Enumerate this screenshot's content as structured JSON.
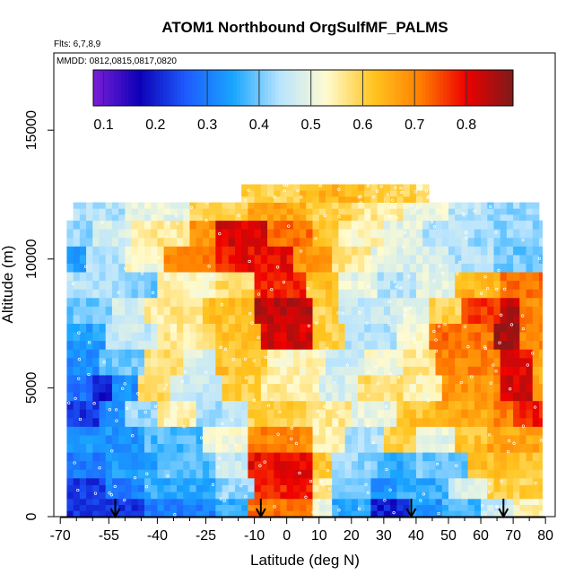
{
  "chart_data": {
    "type": "heatmap",
    "title": "ATOM1 Northbound OrgSulfMF_PALMS",
    "subtitle_flights": "Flts: 6,7,8,9",
    "subtitle_dates": "MMDD: 0812,0815,0817,0820",
    "xlabel": "Latitude (deg N)",
    "ylabel": "Altitude (m)",
    "xlim": [
      -72,
      83
    ],
    "ylim": [
      0,
      18000
    ],
    "x_ticks": [
      -70,
      -55,
      -40,
      -25,
      -10,
      0,
      10,
      20,
      30,
      40,
      50,
      60,
      70,
      80
    ],
    "x_tick_labels": [
      "-70",
      "-55",
      "-40",
      "-25",
      "-10",
      "0",
      "10",
      "20",
      "30",
      "40",
      "50",
      "60",
      "70",
      "80"
    ],
    "x_minor_ticks": [
      -65,
      -60,
      -50,
      -45,
      -35,
      -30,
      -20,
      -15,
      -5,
      5,
      15,
      25,
      35,
      45,
      55,
      65,
      75
    ],
    "y_ticks": [
      0,
      5000,
      10000,
      15000
    ],
    "y_tick_labels": [
      "0",
      "5000",
      "10000",
      "15000"
    ],
    "colorbar": {
      "ticks": [
        0.1,
        0.2,
        0.3,
        0.4,
        0.5,
        0.6,
        0.7,
        0.8
      ],
      "tick_labels": [
        "0.1",
        "0.2",
        "0.3",
        "0.4",
        "0.5",
        "0.6",
        "0.7",
        "0.8"
      ],
      "range": [
        0.08,
        0.89
      ],
      "stops": [
        "#7a1fd6",
        "#0c00b8",
        "#1e5cff",
        "#19a6ff",
        "#b8e4ff",
        "#fffbd0",
        "#ffc520",
        "#ff8000",
        "#ee0000",
        "#7e1a1a"
      ]
    },
    "flight_arrows_lat": [
      -53,
      -8,
      38.5,
      67
    ],
    "value_bands": [
      {
        "alt": [
          0,
          700
        ],
        "segments": [
          [
            -68,
            -44,
            0.22
          ],
          [
            -44,
            -22,
            0.3
          ],
          [
            -22,
            -12,
            0.36
          ],
          [
            -12,
            8,
            0.72
          ],
          [
            8,
            14,
            0.5
          ],
          [
            14,
            26,
            0.36
          ],
          [
            26,
            38,
            0.2
          ],
          [
            38,
            48,
            0.33
          ],
          [
            48,
            60,
            0.38
          ],
          [
            60,
            70,
            0.46
          ],
          [
            70,
            79,
            0.54
          ]
        ]
      },
      {
        "alt": [
          700,
          1500
        ],
        "segments": [
          [
            -68,
            -56,
            0.22
          ],
          [
            -56,
            -44,
            0.3
          ],
          [
            -44,
            -22,
            0.36
          ],
          [
            -22,
            -10,
            0.42
          ],
          [
            -10,
            8,
            0.78
          ],
          [
            8,
            14,
            0.56
          ],
          [
            14,
            26,
            0.4
          ],
          [
            26,
            34,
            0.33
          ],
          [
            34,
            50,
            0.36
          ],
          [
            50,
            62,
            0.48
          ],
          [
            62,
            79,
            0.6
          ]
        ]
      },
      {
        "alt": [
          1500,
          2500
        ],
        "segments": [
          [
            -68,
            -56,
            0.3
          ],
          [
            -56,
            -40,
            0.34
          ],
          [
            -40,
            -22,
            0.38
          ],
          [
            -22,
            -12,
            0.46
          ],
          [
            -12,
            8,
            0.8
          ],
          [
            8,
            14,
            0.62
          ],
          [
            14,
            28,
            0.42
          ],
          [
            28,
            40,
            0.36
          ],
          [
            40,
            56,
            0.4
          ],
          [
            56,
            79,
            0.62
          ]
        ]
      },
      {
        "alt": [
          2500,
          3500
        ],
        "segments": [
          [
            -68,
            -44,
            0.33
          ],
          [
            -44,
            -26,
            0.38
          ],
          [
            -26,
            -12,
            0.52
          ],
          [
            -12,
            8,
            0.7
          ],
          [
            8,
            18,
            0.56
          ],
          [
            18,
            30,
            0.44
          ],
          [
            30,
            40,
            0.6
          ],
          [
            40,
            52,
            0.5
          ],
          [
            52,
            62,
            0.62
          ],
          [
            62,
            79,
            0.66
          ]
        ]
      },
      {
        "alt": [
          3500,
          4500
        ],
        "segments": [
          [
            -68,
            -58,
            0.22
          ],
          [
            -58,
            -50,
            0.32
          ],
          [
            -50,
            -40,
            0.42
          ],
          [
            -40,
            -28,
            0.55
          ],
          [
            -28,
            -12,
            0.44
          ],
          [
            -12,
            6,
            0.6
          ],
          [
            6,
            20,
            0.56
          ],
          [
            20,
            34,
            0.5
          ],
          [
            34,
            46,
            0.62
          ],
          [
            46,
            64,
            0.66
          ],
          [
            64,
            70,
            0.7
          ],
          [
            70,
            79,
            0.78
          ]
        ]
      },
      {
        "alt": [
          4500,
          5500
        ],
        "segments": [
          [
            -68,
            -60,
            0.28
          ],
          [
            -60,
            -54,
            0.2
          ],
          [
            -54,
            -46,
            0.32
          ],
          [
            -46,
            -36,
            0.58
          ],
          [
            -36,
            -20,
            0.46
          ],
          [
            -20,
            -8,
            0.6
          ],
          [
            -8,
            10,
            0.56
          ],
          [
            10,
            22,
            0.48
          ],
          [
            22,
            36,
            0.58
          ],
          [
            36,
            48,
            0.54
          ],
          [
            48,
            66,
            0.68
          ],
          [
            66,
            76,
            0.82
          ],
          [
            76,
            79,
            0.66
          ]
        ]
      },
      {
        "alt": [
          5500,
          6500
        ],
        "segments": [
          [
            -68,
            -58,
            0.32
          ],
          [
            -58,
            -44,
            0.4
          ],
          [
            -44,
            -32,
            0.58
          ],
          [
            -32,
            -22,
            0.48
          ],
          [
            -22,
            -6,
            0.62
          ],
          [
            -6,
            12,
            0.54
          ],
          [
            12,
            24,
            0.46
          ],
          [
            24,
            36,
            0.52
          ],
          [
            36,
            46,
            0.56
          ],
          [
            46,
            66,
            0.7
          ],
          [
            66,
            76,
            0.8
          ],
          [
            76,
            79,
            0.66
          ]
        ]
      },
      {
        "alt": [
          6500,
          7500
        ],
        "segments": [
          [
            -68,
            -56,
            0.34
          ],
          [
            -56,
            -40,
            0.46
          ],
          [
            -40,
            -22,
            0.56
          ],
          [
            -22,
            -8,
            0.62
          ],
          [
            -8,
            8,
            0.82
          ],
          [
            8,
            18,
            0.6
          ],
          [
            18,
            34,
            0.44
          ],
          [
            34,
            44,
            0.52
          ],
          [
            44,
            64,
            0.72
          ],
          [
            64,
            72,
            0.86
          ],
          [
            72,
            79,
            0.7
          ]
        ]
      },
      {
        "alt": [
          7500,
          8500
        ],
        "segments": [
          [
            -68,
            -54,
            0.4
          ],
          [
            -54,
            -44,
            0.48
          ],
          [
            -44,
            -26,
            0.56
          ],
          [
            -26,
            -10,
            0.62
          ],
          [
            -10,
            8,
            0.84
          ],
          [
            8,
            16,
            0.6
          ],
          [
            16,
            34,
            0.46
          ],
          [
            34,
            44,
            0.5
          ],
          [
            44,
            54,
            0.6
          ],
          [
            54,
            66,
            0.76
          ],
          [
            66,
            72,
            0.84
          ],
          [
            72,
            79,
            0.7
          ]
        ]
      },
      {
        "alt": [
          8500,
          9500
        ],
        "segments": [
          [
            -68,
            -50,
            0.44
          ],
          [
            -50,
            -40,
            0.4
          ],
          [
            -40,
            -22,
            0.54
          ],
          [
            -22,
            -10,
            0.58
          ],
          [
            -10,
            6,
            0.78
          ],
          [
            6,
            16,
            0.62
          ],
          [
            16,
            28,
            0.5
          ],
          [
            28,
            40,
            0.44
          ],
          [
            40,
            52,
            0.5
          ],
          [
            52,
            66,
            0.64
          ],
          [
            66,
            79,
            0.72
          ]
        ]
      },
      {
        "alt": [
          9500,
          10500
        ],
        "segments": [
          [
            -68,
            -62,
            0.34
          ],
          [
            -62,
            -50,
            0.44
          ],
          [
            -50,
            -38,
            0.52
          ],
          [
            -38,
            -22,
            0.7
          ],
          [
            -22,
            -14,
            0.78
          ],
          [
            -14,
            2,
            0.8
          ],
          [
            2,
            14,
            0.68
          ],
          [
            14,
            26,
            0.56
          ],
          [
            26,
            36,
            0.5
          ],
          [
            36,
            50,
            0.48
          ],
          [
            50,
            64,
            0.44
          ],
          [
            64,
            79,
            0.4
          ]
        ]
      },
      {
        "alt": [
          10500,
          11500
        ],
        "segments": [
          [
            -68,
            -60,
            0.42
          ],
          [
            -60,
            -48,
            0.48
          ],
          [
            -48,
            -30,
            0.56
          ],
          [
            -30,
            -22,
            0.68
          ],
          [
            -22,
            -6,
            0.82
          ],
          [
            -6,
            8,
            0.72
          ],
          [
            8,
            16,
            0.62
          ],
          [
            16,
            30,
            0.54
          ],
          [
            30,
            42,
            0.5
          ],
          [
            42,
            56,
            0.44
          ],
          [
            56,
            79,
            0.42
          ]
        ]
      },
      {
        "alt": [
          11500,
          12200
        ],
        "segments": [
          [
            -66,
            -50,
            0.44
          ],
          [
            -50,
            -30,
            0.5
          ],
          [
            -30,
            -12,
            0.6
          ],
          [
            -12,
            6,
            0.66
          ],
          [
            6,
            20,
            0.6
          ],
          [
            20,
            36,
            0.56
          ],
          [
            36,
            50,
            0.5
          ],
          [
            50,
            62,
            0.45
          ],
          [
            62,
            78,
            0.42
          ]
        ]
      },
      {
        "alt": [
          12200,
          12900
        ],
        "segments": [
          [
            -14,
            4,
            0.6
          ],
          [
            4,
            24,
            0.64
          ],
          [
            24,
            40,
            0.6
          ],
          [
            40,
            44,
            0.56
          ]
        ]
      }
    ]
  }
}
